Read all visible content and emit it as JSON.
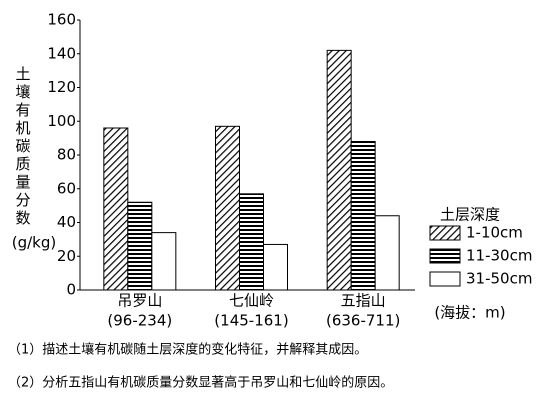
{
  "chart_data": {
    "type": "bar",
    "ylabel": "土壤有机碳质量分数",
    "ylabel_unit": "(g/kg)",
    "categories": [
      "吊罗山",
      "七仙岭",
      "五指山"
    ],
    "category_ranges": [
      "(96-234)",
      "(145-161)",
      "(636-711)"
    ],
    "xlabel": "(海拔：m)",
    "legend_title": "土层深度",
    "series": [
      {
        "name": "1-10cm",
        "color": "#000000",
        "pattern": "diagonal",
        "values": [
          96,
          97,
          142
        ]
      },
      {
        "name": "11-30cm",
        "color": "#000000",
        "pattern": "horizontal",
        "values": [
          52,
          57,
          88
        ]
      },
      {
        "name": "31-50cm",
        "color": "#000000",
        "pattern": "none",
        "values": [
          34,
          27,
          44
        ]
      }
    ],
    "ylim": [
      0,
      160
    ],
    "yticks": [
      0,
      20,
      40,
      60,
      80,
      100,
      120,
      140,
      160
    ]
  },
  "questions": [
    "（1）描述土壤有机碳随土层深度的变化特征，并解释其成因。",
    "（2）分析五指山有机碳质量分数显著高于吊罗山和七仙岭的原因。"
  ]
}
